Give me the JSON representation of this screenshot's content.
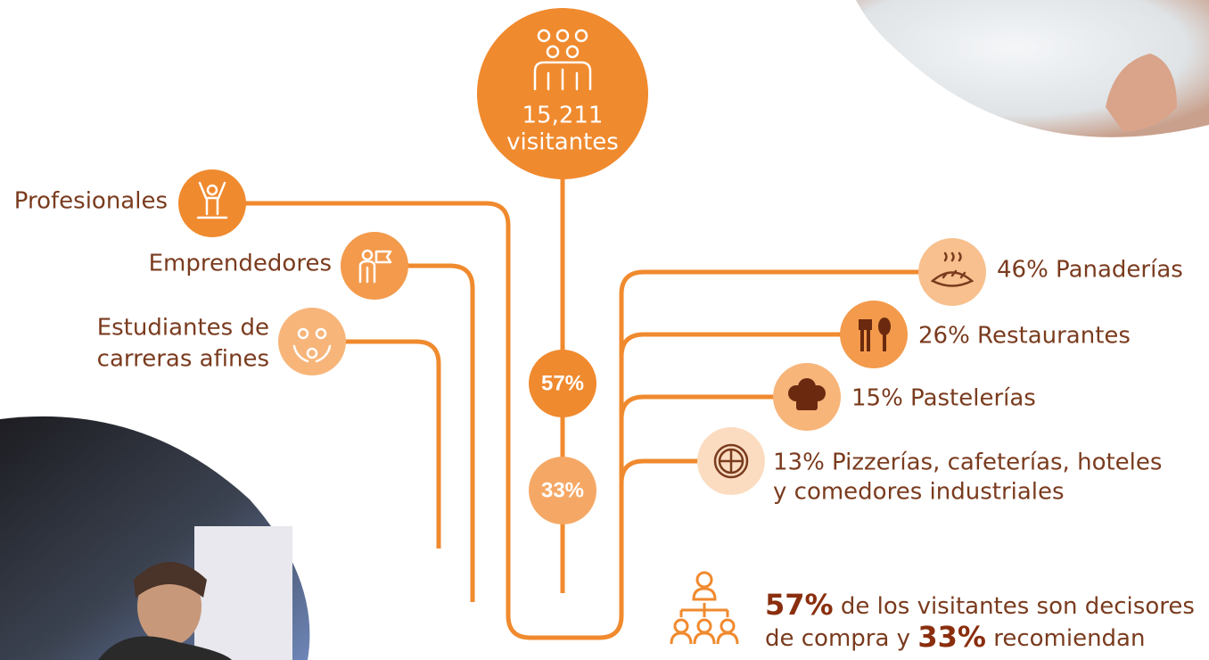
{
  "center": {
    "count": "15,211",
    "label": "visitantes"
  },
  "left_items": [
    {
      "lines": [
        "Profesionales"
      ]
    },
    {
      "lines": [
        "Emprendedores"
      ]
    },
    {
      "lines": [
        "Estudiantes de",
        "carreras afines"
      ]
    }
  ],
  "center_percentages": [
    "57%",
    "33%"
  ],
  "right_items": [
    {
      "lines": [
        "46% Panaderías"
      ]
    },
    {
      "lines": [
        "26% Restaurantes"
      ]
    },
    {
      "lines": [
        "15% Pastelerías"
      ]
    },
    {
      "lines": [
        "13% Pizzerías, cafeterías, hoteles",
        "y comedores industriales"
      ]
    }
  ],
  "note": {
    "pct1": "57%",
    "text1": "de los visitantes son decisores",
    "text2": "de compra y",
    "pct2": "33%",
    "text3": "recomiendan"
  }
}
